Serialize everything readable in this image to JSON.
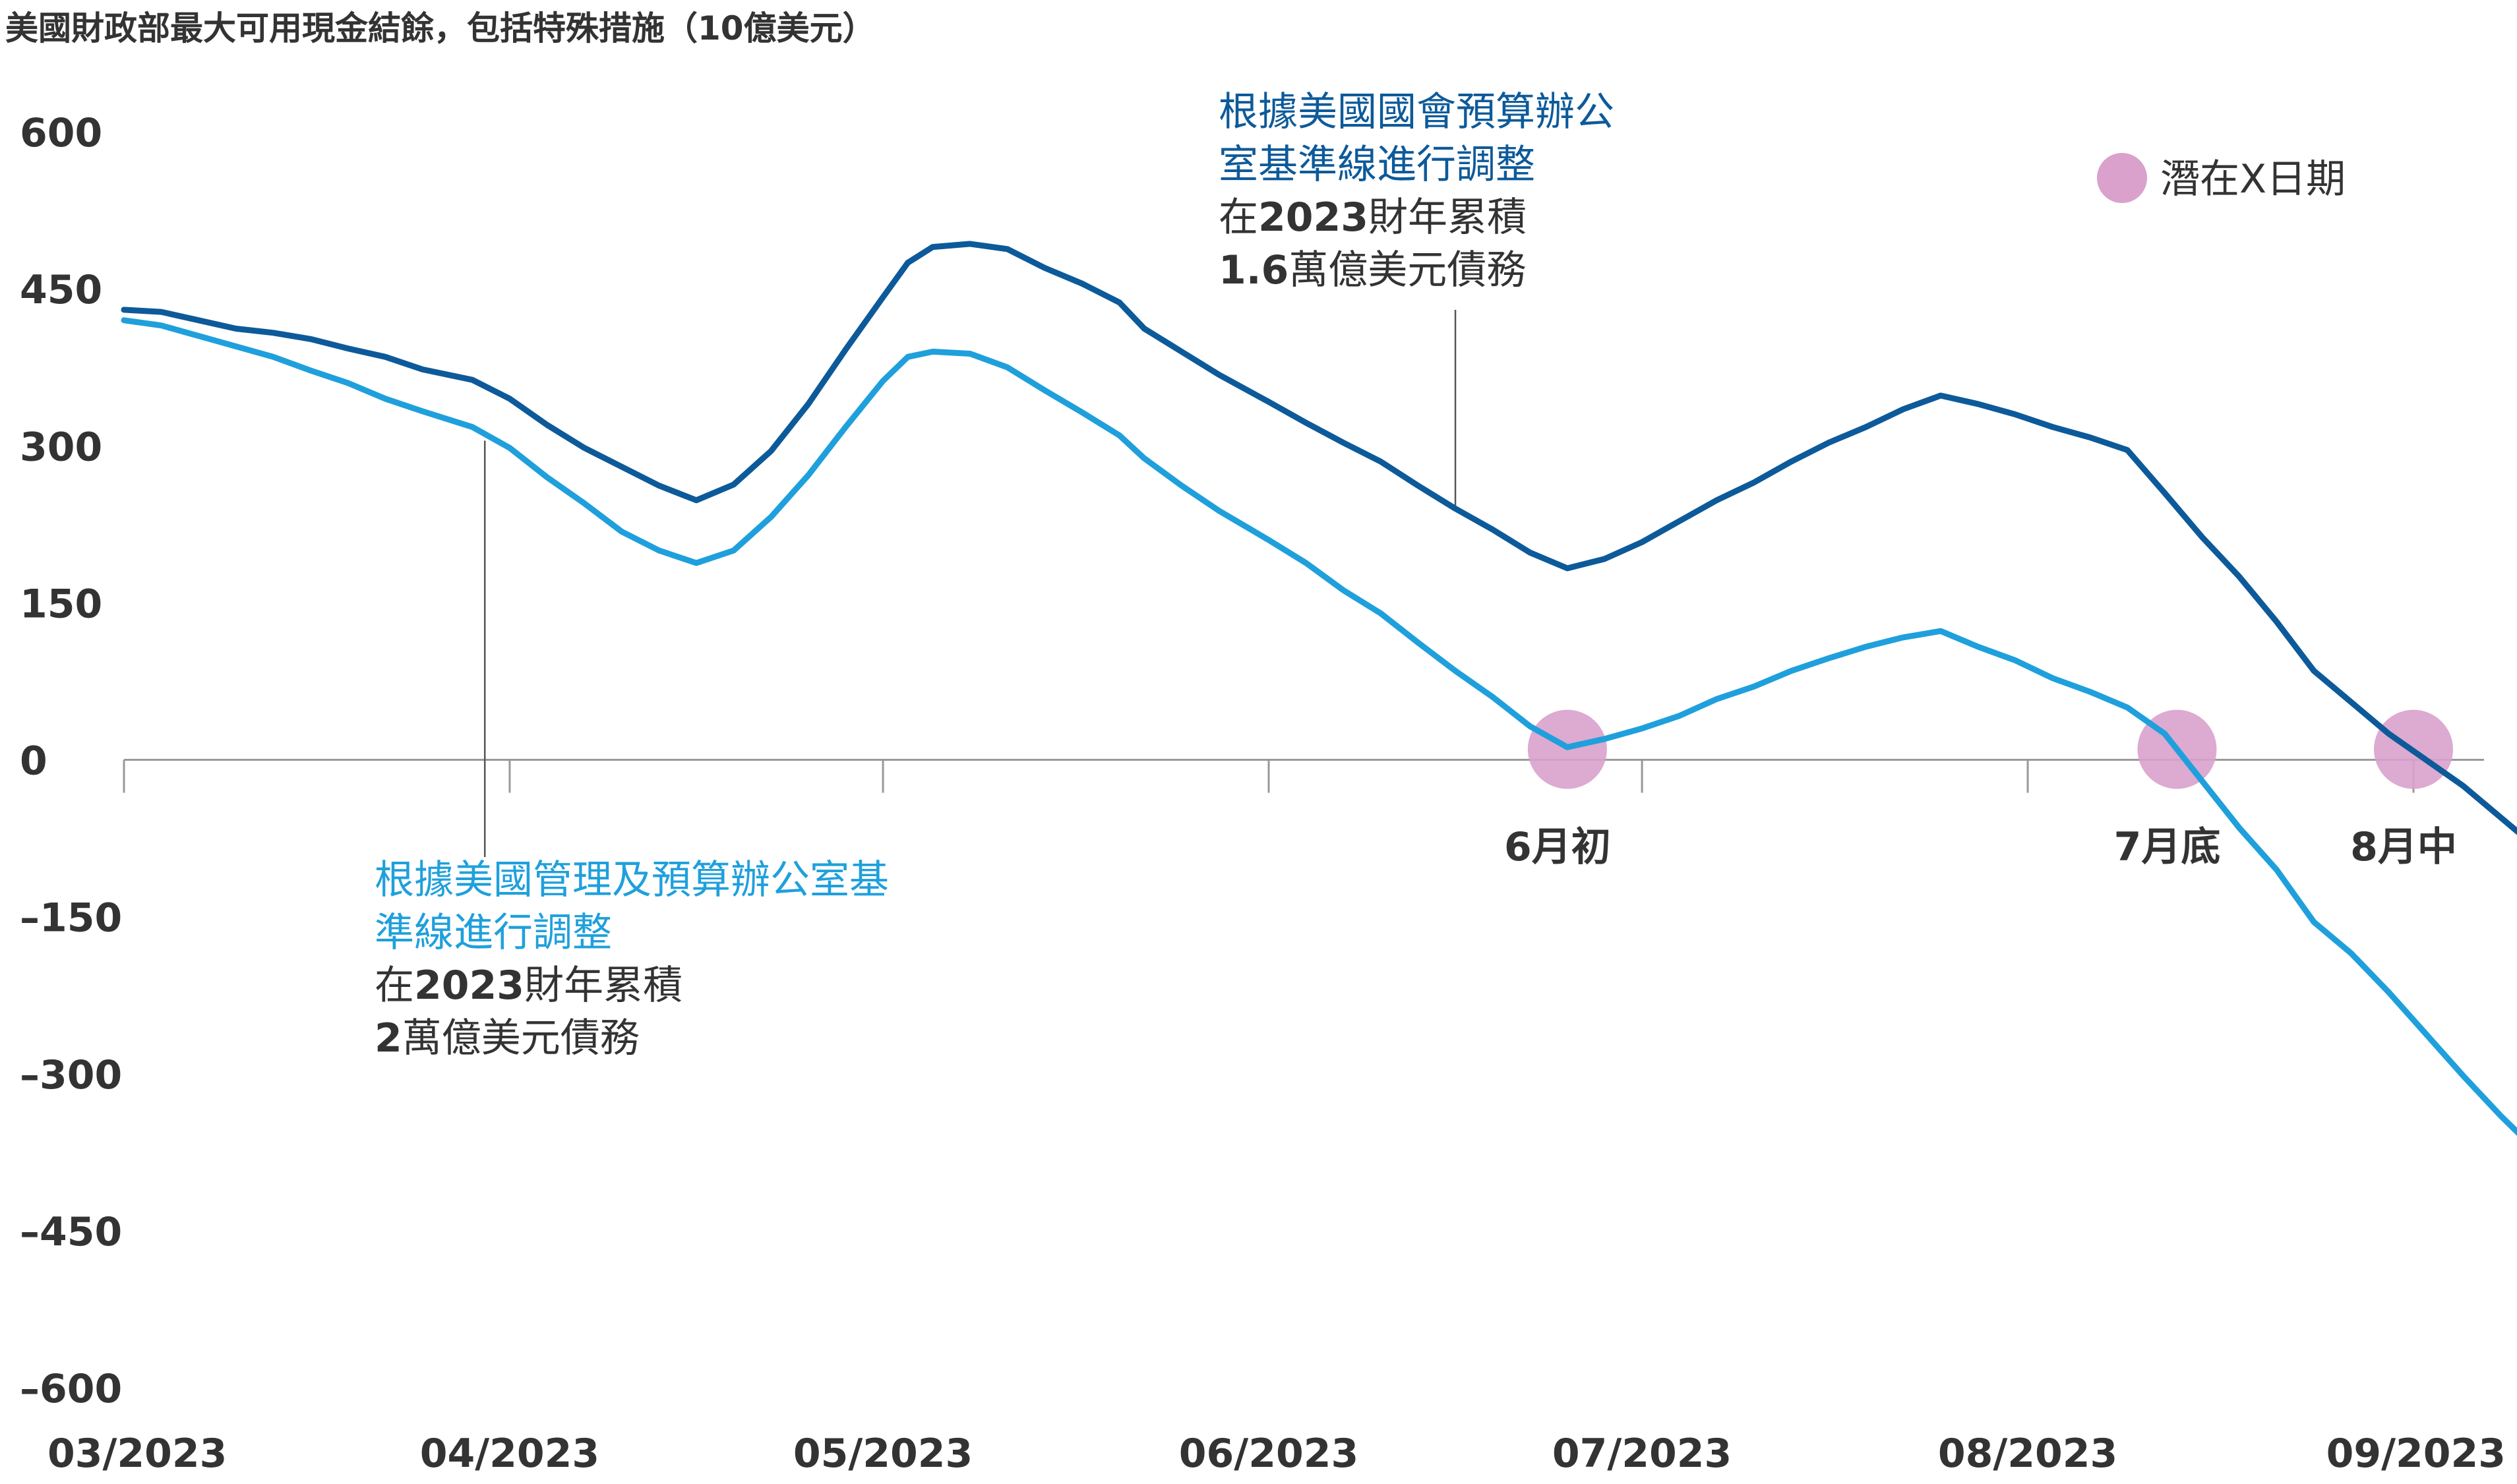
{
  "chart_data": {
    "type": "line",
    "title": "美國財政部最大可用現金結餘，包括特殊措施（10億美元）",
    "xlabel": "",
    "ylabel": "",
    "ylim": [
      -600,
      600
    ],
    "yticks": [
      "600",
      "450",
      "300",
      "150",
      "0",
      "–150",
      "–300",
      "–450",
      "–600"
    ],
    "ytick_values": [
      600,
      450,
      300,
      150,
      0,
      -150,
      -300,
      -450,
      -600
    ],
    "xticks": [
      "03/2023",
      "04/2023",
      "05/2023",
      "06/2023",
      "07/2023",
      "08/2023",
      "09/2023"
    ],
    "xtick_positions": [
      "2023-03-01",
      "2023-04-01",
      "2023-05-01",
      "2023-06-01",
      "2023-07-01",
      "2023-08-01",
      "2023-09-01"
    ],
    "xlim": [
      "2023-03-01",
      "2023-09-05"
    ],
    "grid": false,
    "series": [
      {
        "color": "#0d5a9a",
        "points": [
          [
            "2023-03-01",
            430
          ],
          [
            "2023-03-04",
            428
          ],
          [
            "2023-03-07",
            420
          ],
          [
            "2023-03-10",
            412
          ],
          [
            "2023-03-13",
            408
          ],
          [
            "2023-03-16",
            402
          ],
          [
            "2023-03-19",
            393
          ],
          [
            "2023-03-22",
            385
          ],
          [
            "2023-03-25",
            373
          ],
          [
            "2023-03-29",
            363
          ],
          [
            "2023-04-01",
            345
          ],
          [
            "2023-04-04",
            320
          ],
          [
            "2023-04-07",
            298
          ],
          [
            "2023-04-10",
            280
          ],
          [
            "2023-04-13",
            262
          ],
          [
            "2023-04-16",
            248
          ],
          [
            "2023-04-19",
            263
          ],
          [
            "2023-04-22",
            295
          ],
          [
            "2023-04-25",
            340
          ],
          [
            "2023-04-28",
            392
          ],
          [
            "2023-05-01",
            442
          ],
          [
            "2023-05-03",
            475
          ],
          [
            "2023-05-05",
            490
          ],
          [
            "2023-05-08",
            493
          ],
          [
            "2023-05-11",
            488
          ],
          [
            "2023-05-14",
            470
          ],
          [
            "2023-05-17",
            455
          ],
          [
            "2023-05-20",
            437
          ],
          [
            "2023-05-22",
            412
          ],
          [
            "2023-05-25",
            390
          ],
          [
            "2023-05-28",
            368
          ],
          [
            "2023-06-01",
            342
          ],
          [
            "2023-06-04",
            322
          ],
          [
            "2023-06-07",
            303
          ],
          [
            "2023-06-10",
            285
          ],
          [
            "2023-06-13",
            262
          ],
          [
            "2023-06-16",
            240
          ],
          [
            "2023-06-19",
            220
          ],
          [
            "2023-06-22",
            198
          ],
          [
            "2023-06-25",
            183
          ],
          [
            "2023-06-28",
            192
          ],
          [
            "2023-07-01",
            208
          ],
          [
            "2023-07-04",
            228
          ],
          [
            "2023-07-07",
            248
          ],
          [
            "2023-07-10",
            265
          ],
          [
            "2023-07-13",
            285
          ],
          [
            "2023-07-16",
            303
          ],
          [
            "2023-07-19",
            318
          ],
          [
            "2023-07-22",
            335
          ],
          [
            "2023-07-25",
            348
          ],
          [
            "2023-07-28",
            340
          ],
          [
            "2023-07-31",
            330
          ],
          [
            "2023-08-03",
            318
          ],
          [
            "2023-08-06",
            308
          ],
          [
            "2023-08-09",
            296
          ],
          [
            "2023-08-12",
            255
          ],
          [
            "2023-08-15",
            213
          ],
          [
            "2023-08-18",
            175
          ],
          [
            "2023-08-21",
            132
          ],
          [
            "2023-08-24",
            85
          ],
          [
            "2023-08-27",
            55
          ],
          [
            "2023-08-30",
            25
          ],
          [
            "2023-09-02",
            0
          ],
          [
            "2023-09-05",
            -25
          ],
          [
            "2023-09-08",
            -55
          ],
          [
            "2023-09-11",
            -85
          ],
          [
            "2023-09-14",
            -110
          ],
          [
            "2023-09-15",
            -114
          ]
        ]
      },
      {
        "color": "#1fa0dc",
        "points": [
          [
            "2023-03-01",
            420
          ],
          [
            "2023-03-04",
            415
          ],
          [
            "2023-03-07",
            405
          ],
          [
            "2023-03-10",
            395
          ],
          [
            "2023-03-13",
            385
          ],
          [
            "2023-03-16",
            372
          ],
          [
            "2023-03-19",
            360
          ],
          [
            "2023-03-22",
            345
          ],
          [
            "2023-03-25",
            333
          ],
          [
            "2023-03-29",
            318
          ],
          [
            "2023-04-01",
            298
          ],
          [
            "2023-04-04",
            270
          ],
          [
            "2023-04-07",
            245
          ],
          [
            "2023-04-10",
            218
          ],
          [
            "2023-04-13",
            200
          ],
          [
            "2023-04-16",
            188
          ],
          [
            "2023-04-19",
            200
          ],
          [
            "2023-04-22",
            232
          ],
          [
            "2023-04-25",
            272
          ],
          [
            "2023-04-28",
            318
          ],
          [
            "2023-05-01",
            362
          ],
          [
            "2023-05-03",
            385
          ],
          [
            "2023-05-05",
            390
          ],
          [
            "2023-05-08",
            388
          ],
          [
            "2023-05-11",
            375
          ],
          [
            "2023-05-14",
            353
          ],
          [
            "2023-05-17",
            332
          ],
          [
            "2023-05-20",
            310
          ],
          [
            "2023-05-22",
            288
          ],
          [
            "2023-05-25",
            262
          ],
          [
            "2023-05-28",
            238
          ],
          [
            "2023-06-01",
            210
          ],
          [
            "2023-06-04",
            188
          ],
          [
            "2023-06-07",
            162
          ],
          [
            "2023-06-10",
            140
          ],
          [
            "2023-06-13",
            112
          ],
          [
            "2023-06-16",
            85
          ],
          [
            "2023-06-19",
            60
          ],
          [
            "2023-06-22",
            32
          ],
          [
            "2023-06-25",
            12
          ],
          [
            "2023-06-28",
            20
          ],
          [
            "2023-07-01",
            30
          ],
          [
            "2023-07-04",
            42
          ],
          [
            "2023-07-07",
            58
          ],
          [
            "2023-07-10",
            70
          ],
          [
            "2023-07-13",
            85
          ],
          [
            "2023-07-16",
            97
          ],
          [
            "2023-07-19",
            108
          ],
          [
            "2023-07-22",
            117
          ],
          [
            "2023-07-25",
            123
          ],
          [
            "2023-07-28",
            108
          ],
          [
            "2023-07-31",
            95
          ],
          [
            "2023-08-03",
            78
          ],
          [
            "2023-08-06",
            65
          ],
          [
            "2023-08-09",
            50
          ],
          [
            "2023-08-12",
            25
          ],
          [
            "2023-08-15",
            -20
          ],
          [
            "2023-08-18",
            -65
          ],
          [
            "2023-08-21",
            -105
          ],
          [
            "2023-08-24",
            -155
          ],
          [
            "2023-08-27",
            -185
          ],
          [
            "2023-08-30",
            -222
          ],
          [
            "2023-09-02",
            -262
          ],
          [
            "2023-09-05",
            -302
          ],
          [
            "2023-09-08",
            -340
          ],
          [
            "2023-09-11",
            -375
          ],
          [
            "2023-09-14",
            -420
          ],
          [
            "2023-09-15",
            -435
          ]
        ]
      }
    ],
    "legend": {
      "label": "潛在X日期",
      "color": "#d9a1cc",
      "placement": "top-right"
    },
    "x_dates": [
      {
        "date": "2023-06-25",
        "value": 10,
        "label": "6月初"
      },
      {
        "date": "2023-08-13",
        "value": 10,
        "label": "7月底"
      },
      {
        "date": "2023-09-01",
        "value": 10,
        "label": "8月中"
      }
    ],
    "annotations": [
      {
        "series": 0,
        "date": "2023-06-16",
        "value": 240,
        "heading": [
          "根據美國國會預算辦公",
          "室基準線進行調整"
        ],
        "body_prefix": "在",
        "body_bold": "2023",
        "body_suffix": "財年累積",
        "amount_bold": "1.6",
        "amount_suffix": "萬億美元債務"
      },
      {
        "series": 1,
        "date": "2023-03-30",
        "value": 305,
        "heading": [
          "根據美國管理及預算辦公室基",
          "準線進行調整"
        ],
        "body_prefix": "在",
        "body_bold": "2023",
        "body_suffix": "財年累積",
        "amount_bold": "2",
        "amount_suffix": "萬億美元債務"
      }
    ]
  }
}
